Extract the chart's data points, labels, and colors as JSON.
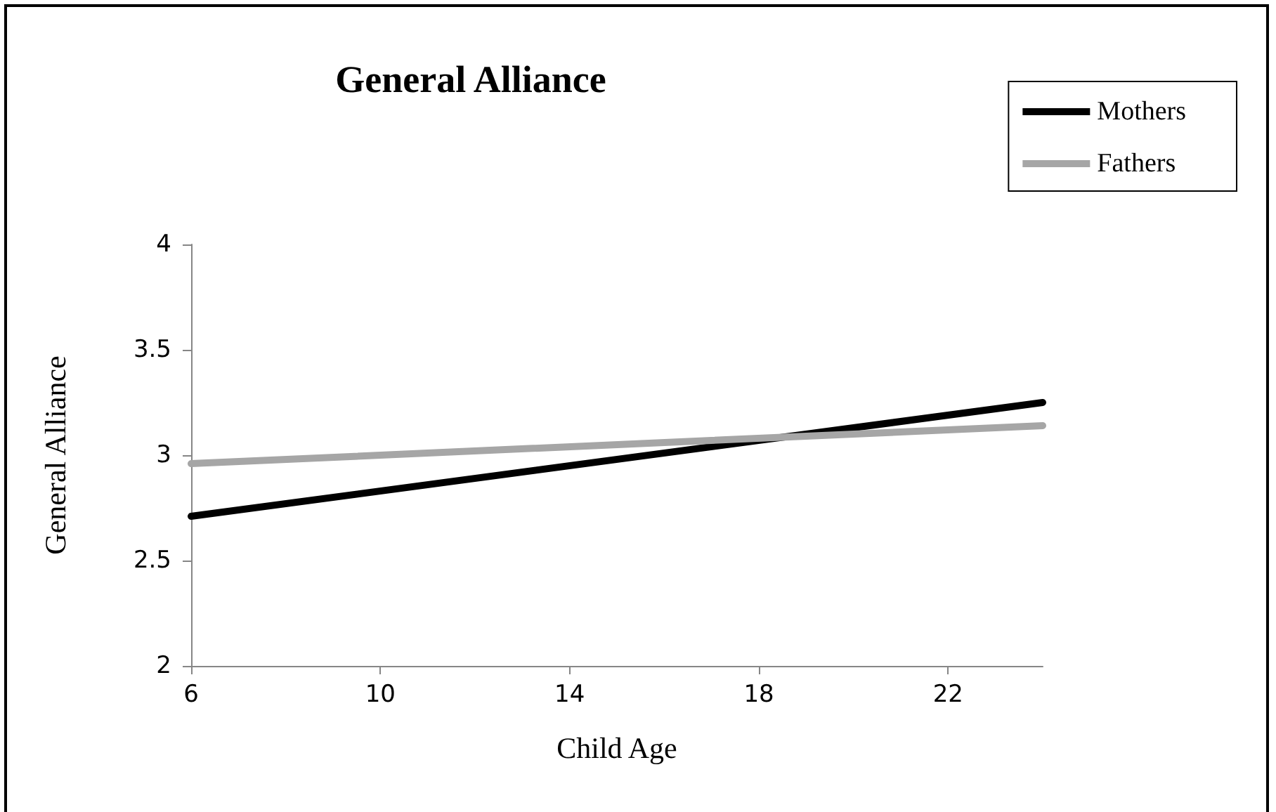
{
  "chart_data": {
    "type": "line",
    "title": "General Alliance",
    "xlabel": "Child Age",
    "ylabel": "General Alliance",
    "x": [
      6,
      24
    ],
    "series": [
      {
        "name": "Mothers",
        "color": "#000000",
        "values": [
          2.71,
          3.25
        ]
      },
      {
        "name": "Fathers",
        "color": "#a6a6a6",
        "values": [
          2.96,
          3.14
        ]
      }
    ],
    "xlim": [
      6,
      24
    ],
    "xticks": [
      6,
      10,
      14,
      18,
      22
    ],
    "ylim": [
      2,
      4
    ],
    "yticks": [
      2,
      2.5,
      3,
      3.5,
      4
    ],
    "grid": false,
    "legend": "top right",
    "marker": "none",
    "line_style": "solid"
  }
}
